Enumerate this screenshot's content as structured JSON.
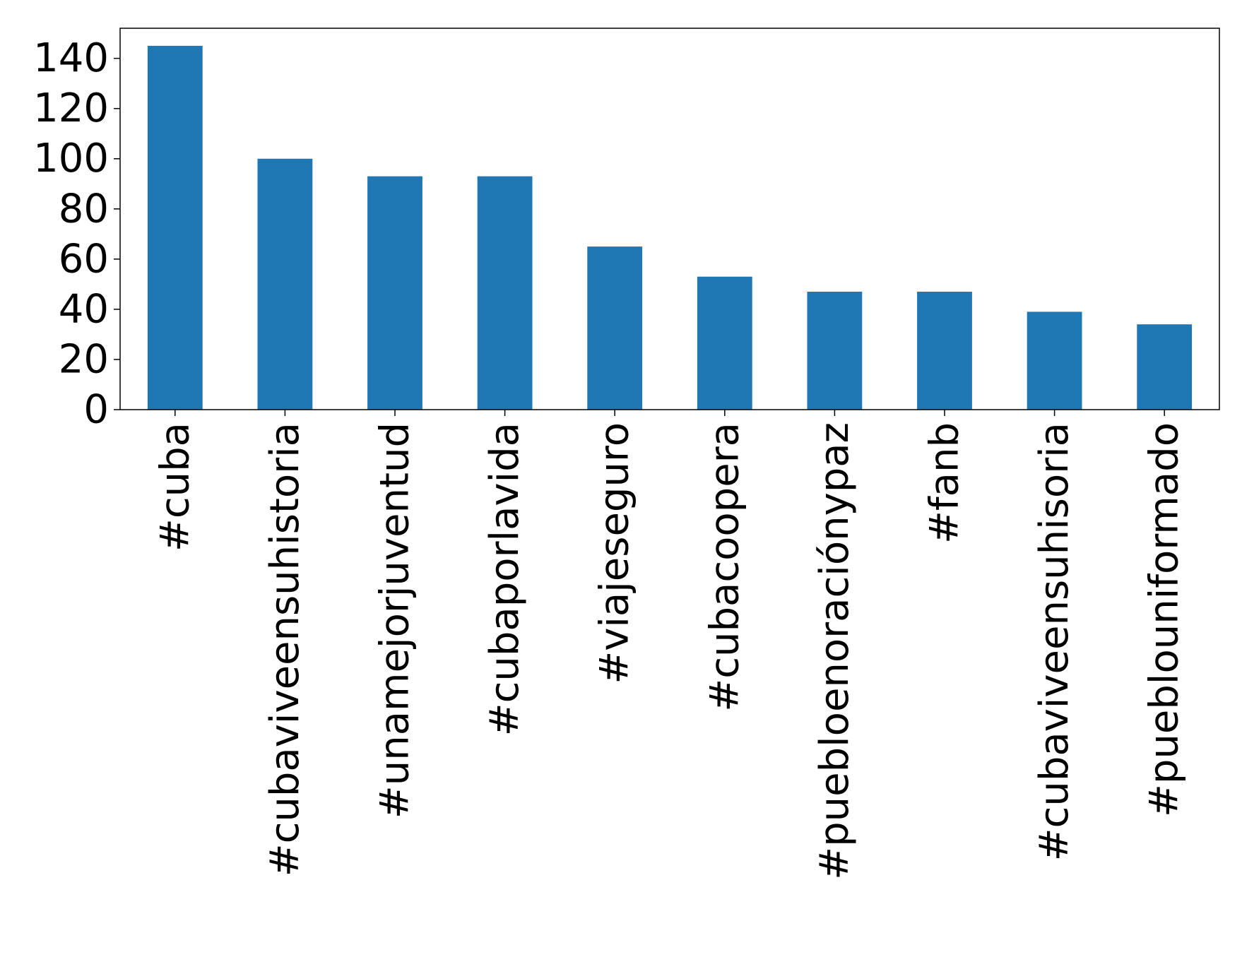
{
  "chart_data": {
    "type": "bar",
    "title": "",
    "xlabel": "",
    "ylabel": "",
    "categories": [
      "#cuba",
      "#cubaviveensuhistoria",
      "#unamejorjuventud",
      "#cubaporlavida",
      "#viajeseguro",
      "#cubacoopera",
      "#puebloenoraciónypaz",
      "#fanb",
      "#cubaviveensuhisoria",
      "#pueblouniformado"
    ],
    "values": [
      145,
      100,
      93,
      93,
      65,
      53,
      47,
      47,
      39,
      34
    ],
    "ylim": [
      0,
      152
    ],
    "yticks": [
      0,
      20,
      40,
      60,
      80,
      100,
      120,
      140
    ],
    "bar_color": "#1f77b4",
    "grid": false,
    "legend": "none"
  }
}
